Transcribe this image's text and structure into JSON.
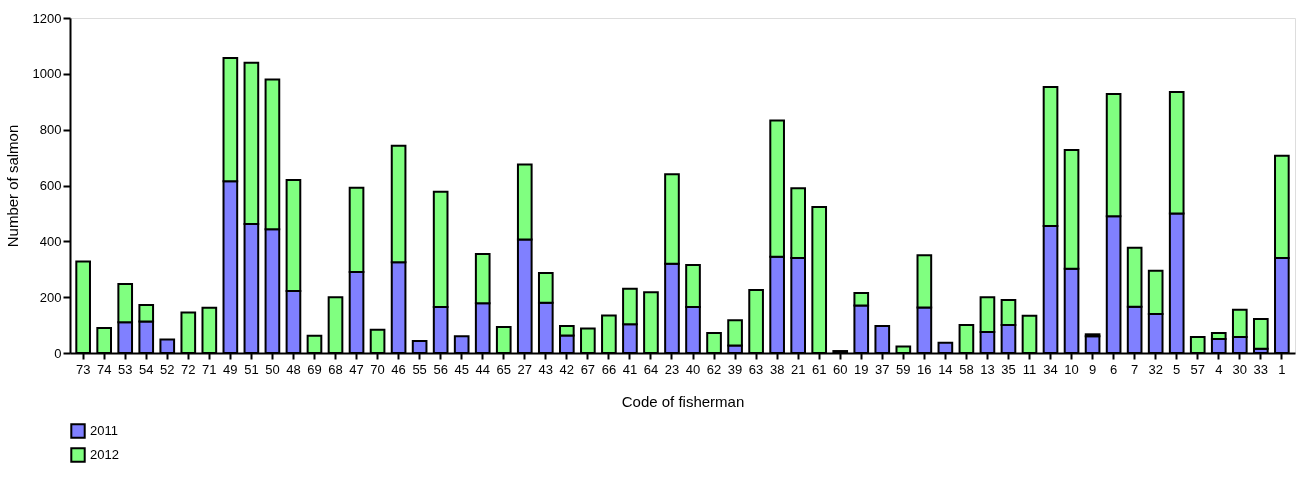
{
  "chart_data": {
    "type": "bar",
    "stacked": true,
    "xlabel": "Code of fisherman",
    "ylabel": "Number of salmon",
    "categories": [
      "73",
      "74",
      "53",
      "54",
      "52",
      "72",
      "71",
      "49",
      "51",
      "50",
      "48",
      "69",
      "68",
      "47",
      "70",
      "46",
      "55",
      "56",
      "45",
      "44",
      "65",
      "27",
      "43",
      "42",
      "67",
      "66",
      "41",
      "64",
      "23",
      "40",
      "62",
      "39",
      "63",
      "38",
      "21",
      "61",
      "60",
      "19",
      "37",
      "59",
      "16",
      "14",
      "58",
      "13",
      "35",
      "11",
      "34",
      "10",
      "9",
      "6",
      "7",
      "32",
      "5",
      "57",
      "4",
      "30",
      "33",
      "1"
    ],
    "series": [
      {
        "name": "2011",
        "color": "#8080ff",
        "values": [
          null,
          null,
          110,
          113,
          48,
          null,
          null,
          615,
          462,
          443,
          222,
          null,
          null,
          290,
          null,
          325,
          43,
          165,
          60,
          178,
          null,
          407,
          180,
          63,
          null,
          null,
          103,
          null,
          320,
          165,
          null,
          27,
          null,
          345,
          340,
          null,
          7,
          170,
          97,
          null,
          163,
          37,
          null,
          75,
          100,
          null,
          455,
          302,
          60,
          490,
          166,
          140,
          500,
          null,
          50,
          57,
          15,
          340
        ]
      },
      {
        "name": "2012",
        "color": "#80ff80",
        "values": [
          328,
          90,
          137,
          59,
          null,
          145,
          162,
          442,
          578,
          537,
          398,
          62,
          200,
          302,
          83,
          417,
          null,
          413,
          null,
          177,
          93,
          268,
          107,
          34,
          88,
          134,
          127,
          218,
          320,
          150,
          72,
          90,
          226,
          488,
          250,
          523,
          null,
          45,
          null,
          23,
          187,
          null,
          100,
          125,
          90,
          133,
          498,
          425,
          7,
          438,
          211,
          155,
          435,
          57,
          22,
          98,
          107,
          367
        ]
      }
    ],
    "ylim": [
      0,
      1200
    ],
    "yticks": [
      0,
      200,
      400,
      600,
      800,
      {
        "value": 1000,
        "label": "1000"
      },
      {
        "value": 1200,
        "label": "1200"
      }
    ],
    "grid": false,
    "legend": "bottom left"
  }
}
